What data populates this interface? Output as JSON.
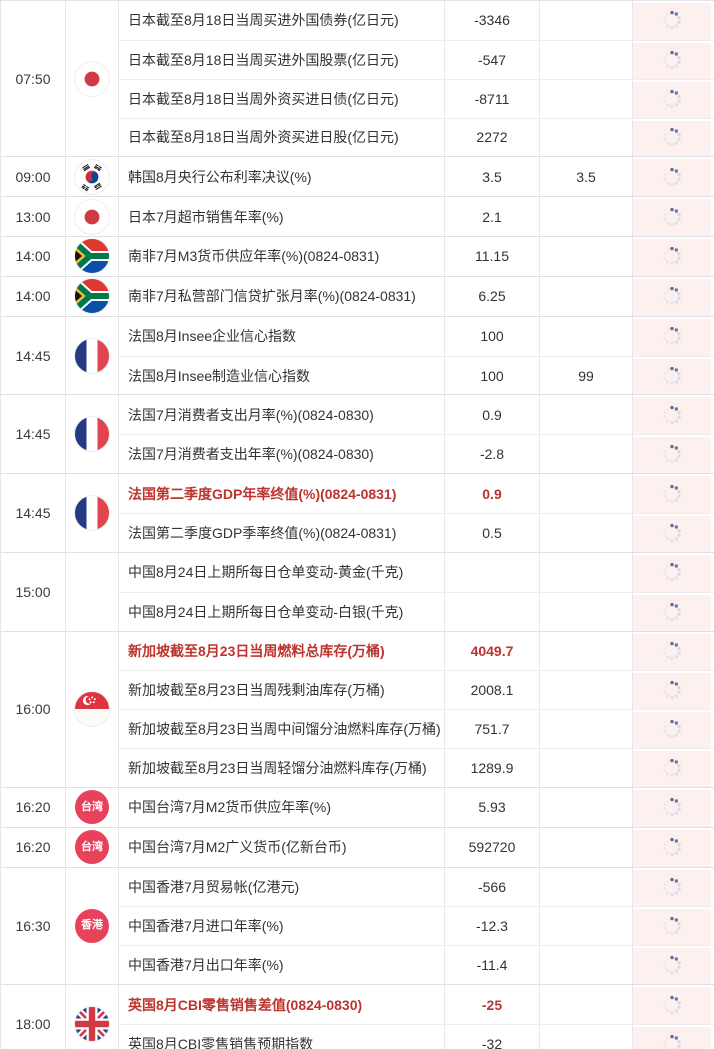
{
  "colors": {
    "highlight_red": "#bd342e",
    "badge_red": "#e8415c",
    "action_cell_bg": "#fdf1f0",
    "spinner_dark": "#5c6d94",
    "spinner_light": "#ccd3e2"
  },
  "icons": {
    "row_action": "loading-spinner-icon"
  },
  "badges": {
    "taiwan": "台湾",
    "hongkong": "香港"
  },
  "table": {
    "groups": [
      {
        "time": "07:50",
        "flag": "japan",
        "rows": [
          {
            "event": "日本截至8月18日当周买进外国债券(亿日元)",
            "actual": "-3346",
            "forecast": "",
            "highlight": false
          },
          {
            "event": "日本截至8月18日当周买进外国股票(亿日元)",
            "actual": "-547",
            "forecast": "",
            "highlight": false
          },
          {
            "event": "日本截至8月18日当周外资买进日债(亿日元)",
            "actual": "-8711",
            "forecast": "",
            "highlight": false
          },
          {
            "event": "日本截至8月18日当周外资买进日股(亿日元)",
            "actual": "2272",
            "forecast": "",
            "highlight": false
          }
        ]
      },
      {
        "time": "09:00",
        "flag": "korea",
        "rows": [
          {
            "event": "韩国8月央行公布利率决议(%)",
            "actual": "3.5",
            "forecast": "3.5",
            "highlight": false
          }
        ]
      },
      {
        "time": "13:00",
        "flag": "japan",
        "rows": [
          {
            "event": "日本7月超市销售年率(%)",
            "actual": "2.1",
            "forecast": "",
            "highlight": false
          }
        ]
      },
      {
        "time": "14:00",
        "flag": "south-africa",
        "rows": [
          {
            "event": "南非7月M3货币供应年率(%)(0824-0831)",
            "actual": "11.15",
            "forecast": "",
            "highlight": false
          }
        ]
      },
      {
        "time": "14:00",
        "flag": "south-africa",
        "rows": [
          {
            "event": "南非7月私营部门信贷扩张月率(%)(0824-0831)",
            "actual": "6.25",
            "forecast": "",
            "highlight": false
          }
        ]
      },
      {
        "time": "14:45",
        "flag": "france",
        "rows": [
          {
            "event": "法国8月Insee企业信心指数",
            "actual": "100",
            "forecast": "",
            "highlight": false
          },
          {
            "event": "法国8月Insee制造业信心指数",
            "actual": "100",
            "forecast": "99",
            "highlight": false
          }
        ]
      },
      {
        "time": "14:45",
        "flag": "france",
        "rows": [
          {
            "event": "法国7月消费者支出月率(%)(0824-0830)",
            "actual": "0.9",
            "forecast": "",
            "highlight": false
          },
          {
            "event": "法国7月消费者支出年率(%)(0824-0830)",
            "actual": "-2.8",
            "forecast": "",
            "highlight": false
          }
        ]
      },
      {
        "time": "14:45",
        "flag": "france",
        "rows": [
          {
            "event": "法国第二季度GDP年率终值(%)(0824-0831)",
            "actual": "0.9",
            "forecast": "",
            "highlight": true
          },
          {
            "event": "法国第二季度GDP季率终值(%)(0824-0831)",
            "actual": "0.5",
            "forecast": "",
            "highlight": false
          }
        ]
      },
      {
        "time": "15:00",
        "flag": "none",
        "rows": [
          {
            "event": "中国8月24日上期所每日仓单变动-黄金(千克)",
            "actual": "",
            "forecast": "",
            "highlight": false
          },
          {
            "event": "中国8月24日上期所每日仓单变动-白银(千克)",
            "actual": "",
            "forecast": "",
            "highlight": false
          }
        ]
      },
      {
        "time": "16:00",
        "flag": "singapore",
        "rows": [
          {
            "event": "新加坡截至8月23日当周燃料总库存(万桶)",
            "actual": "4049.7",
            "forecast": "",
            "highlight": true
          },
          {
            "event": "新加坡截至8月23日当周残剩油库存(万桶)",
            "actual": "2008.1",
            "forecast": "",
            "highlight": false
          },
          {
            "event": "新加坡截至8月23日当周中间馏分油燃料库存(万桶)",
            "actual": "751.7",
            "forecast": "",
            "highlight": false
          },
          {
            "event": "新加坡截至8月23日当周轻馏分油燃料库存(万桶)",
            "actual": "1289.9",
            "forecast": "",
            "highlight": false
          }
        ]
      },
      {
        "time": "16:20",
        "flag": "taiwan",
        "rows": [
          {
            "event": "中国台湾7月M2货币供应年率(%)",
            "actual": "5.93",
            "forecast": "",
            "highlight": false
          }
        ]
      },
      {
        "time": "16:20",
        "flag": "taiwan",
        "rows": [
          {
            "event": "中国台湾7月M2广义货币(亿新台币)",
            "actual": "592720",
            "forecast": "",
            "highlight": false
          }
        ]
      },
      {
        "time": "16:30",
        "flag": "hongkong",
        "rows": [
          {
            "event": "中国香港7月贸易帐(亿港元)",
            "actual": "-566",
            "forecast": "",
            "highlight": false
          },
          {
            "event": "中国香港7月进口年率(%)",
            "actual": "-12.3",
            "forecast": "",
            "highlight": false
          },
          {
            "event": "中国香港7月出口年率(%)",
            "actual": "-11.4",
            "forecast": "",
            "highlight": false
          }
        ]
      },
      {
        "time": "18:00",
        "flag": "uk",
        "rows": [
          {
            "event": "英国8月CBI零售销售差值(0824-0830)",
            "actual": "-25",
            "forecast": "",
            "highlight": true
          },
          {
            "event": "英国8月CBI零售销售预期指数",
            "actual": "-32",
            "forecast": "",
            "highlight": false
          }
        ]
      }
    ]
  }
}
